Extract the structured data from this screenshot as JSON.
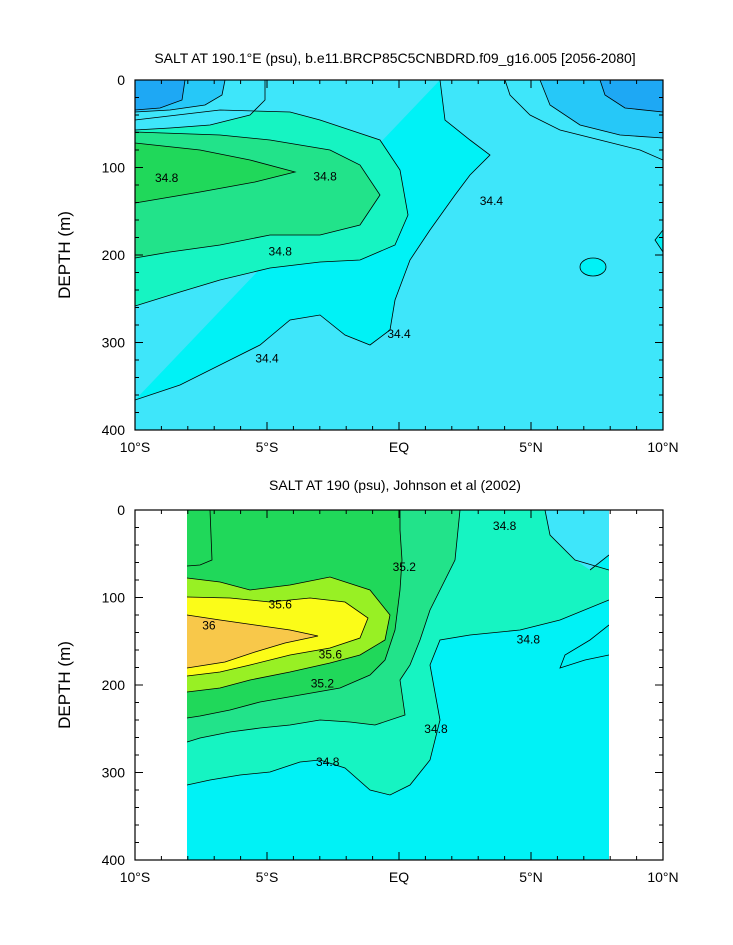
{
  "chart_data": [
    {
      "type": "contour",
      "title": "SALT AT 190.1°E (psu), b.e11.BRCP85C5CNBDRD.f09_g16.005 [2056-2080]",
      "xlabel": "",
      "ylabel": "DEPTH (m)",
      "x_tick_labels": [
        "10°S",
        "5°S",
        "EQ",
        "5°N",
        "10°N"
      ],
      "x_tick_values": [
        -10,
        -5,
        0,
        5,
        10
      ],
      "y_tick_labels": [
        "0",
        "100",
        "200",
        "300",
        "400"
      ],
      "y_tick_values": [
        0,
        100,
        200,
        300,
        400
      ],
      "xlim": [
        -10,
        10
      ],
      "ylim": [
        400,
        0
      ],
      "contour_labels": [
        {
          "text": "34.8",
          "lat": -8.8,
          "depth": 112
        },
        {
          "text": "34.8",
          "lat": -2.8,
          "depth": 110
        },
        {
          "text": "34.8",
          "lat": -4.5,
          "depth": 196
        },
        {
          "text": "34.4",
          "lat": 3.5,
          "depth": 138
        },
        {
          "text": "34.4",
          "lat": 0.0,
          "depth": 290
        },
        {
          "text": "34.4",
          "lat": -5.0,
          "depth": 318
        }
      ]
    },
    {
      "type": "contour",
      "title": "SALT AT 190 (psu), Johnson et al (2002)",
      "xlabel": "",
      "ylabel": "DEPTH (m)",
      "x_tick_labels": [
        "10°S",
        "5°S",
        "EQ",
        "5°N",
        "10°N"
      ],
      "x_tick_values": [
        -10,
        -5,
        0,
        5,
        10
      ],
      "y_tick_labels": [
        "0",
        "100",
        "200",
        "300",
        "400"
      ],
      "y_tick_values": [
        0,
        100,
        200,
        300,
        400
      ],
      "xlim": [
        -10,
        10
      ],
      "ylim": [
        400,
        0
      ],
      "data_extent_lat": [
        -8,
        8
      ],
      "contour_labels": [
        {
          "text": "34.8",
          "lat": 4.0,
          "depth": 18
        },
        {
          "text": "35.2",
          "lat": 0.2,
          "depth": 65
        },
        {
          "text": "35.6",
          "lat": -4.5,
          "depth": 108
        },
        {
          "text": "36",
          "lat": -7.2,
          "depth": 132
        },
        {
          "text": "35.6",
          "lat": -2.6,
          "depth": 165
        },
        {
          "text": "35.2",
          "lat": -2.9,
          "depth": 198
        },
        {
          "text": "34.8",
          "lat": 4.9,
          "depth": 148
        },
        {
          "text": "34.8",
          "lat": 1.4,
          "depth": 250
        },
        {
          "text": "34.8",
          "lat": -2.7,
          "depth": 288
        }
      ]
    }
  ],
  "colors": {
    "s34_2": "#1ea8f4",
    "s34_4": "#26c8f8",
    "s34_6": "#3ee6fa",
    "s34_8": "#00f2f6",
    "s35_0": "#16f4c2",
    "s35_2": "#22e38a",
    "s35_4": "#20d85a",
    "s35_6": "#98f024",
    "s35_8": "#fbfc18",
    "s36_0": "#f8c84a"
  }
}
